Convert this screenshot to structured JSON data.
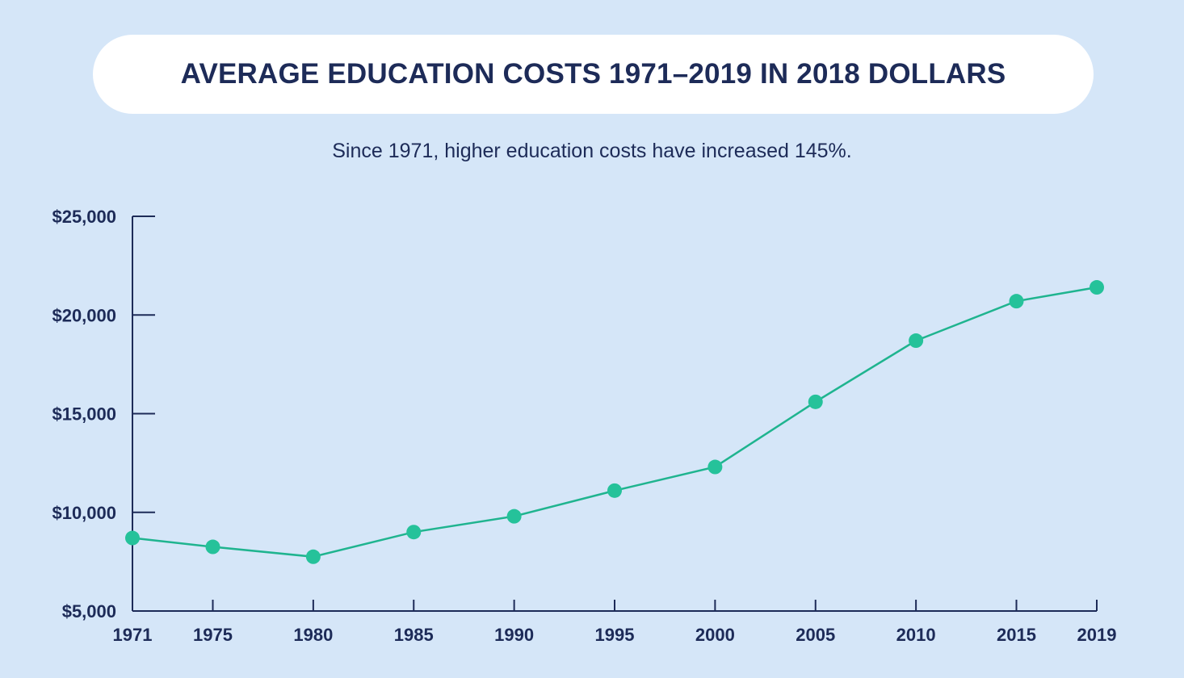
{
  "chart_data": {
    "type": "line",
    "title": "AVERAGE EDUCATION COSTS 1971–2019 IN 2018 DOLLARS",
    "subtitle": "Since 1971, higher education costs have increased 145%.",
    "xlabel": "",
    "ylabel": "",
    "x": [
      1971,
      1975,
      1980,
      1985,
      1990,
      1995,
      2000,
      2005,
      2010,
      2015,
      2019
    ],
    "x_tick_labels": [
      "1971",
      "1975",
      "1980",
      "1985",
      "1990",
      "1995",
      "2000",
      "2005",
      "2010",
      "2015",
      "2019"
    ],
    "series": [
      {
        "values": [
          8700,
          8250,
          7750,
          9000,
          9800,
          11100,
          12300,
          15600,
          18700,
          20700,
          21400
        ]
      }
    ],
    "y_ticks": [
      25000,
      20000,
      15000,
      10000,
      5000
    ],
    "y_tick_labels": [
      "$25,000",
      "$20,000",
      "$15,000",
      "$10,000",
      "$5,000"
    ],
    "ylim": [
      5000,
      25000
    ],
    "grid": false,
    "colors": {
      "line": "#1fb48f",
      "marker": "#25c29a",
      "axis": "#1d2b58",
      "text": "#1d2b58",
      "background": "#d5e6f8"
    }
  }
}
